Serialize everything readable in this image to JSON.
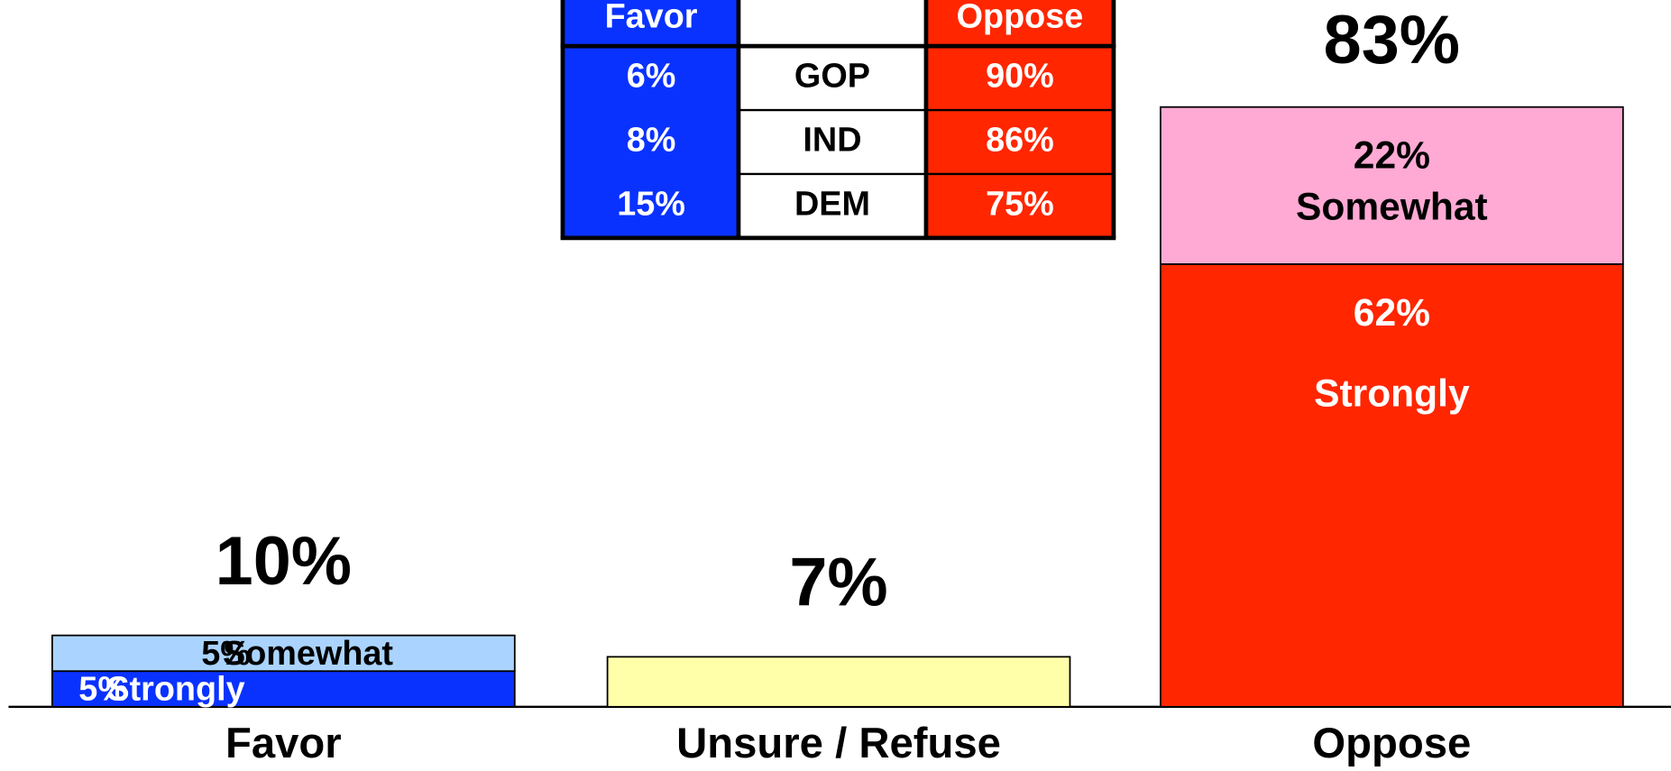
{
  "chart_data": {
    "type": "stacked-bar",
    "categories": [
      "Favor",
      "Unsure / Refuse",
      "Oppose"
    ],
    "series": [
      {
        "name": "Strongly",
        "values": [
          5,
          null,
          62
        ],
        "value_labels": [
          "5%",
          null,
          "62%"
        ],
        "colors": [
          "#0a32ff",
          null,
          "#ff2600"
        ],
        "text_color": "#ffffff"
      },
      {
        "name": "Somewhat",
        "values": [
          5,
          null,
          22
        ],
        "value_labels": [
          "5%",
          null,
          "22%"
        ],
        "colors": [
          "#aad4ff",
          null,
          "#ffaad4"
        ],
        "text_color": "#000000"
      },
      {
        "values": [
          null,
          7,
          null
        ],
        "colors": [
          null,
          "#ffffaa",
          null
        ]
      }
    ],
    "totals": [
      10,
      7,
      83
    ],
    "total_labels": [
      "10%",
      "7%",
      "83%"
    ]
  },
  "table": {
    "header": [
      "Favor",
      "Oppose"
    ],
    "rows": [
      {
        "label": "GOP",
        "favor": "6%",
        "oppose": "90%"
      },
      {
        "label": "IND",
        "favor": "8%",
        "oppose": "86%"
      },
      {
        "label": "DEM",
        "favor": "15%",
        "oppose": "75%"
      }
    ]
  }
}
